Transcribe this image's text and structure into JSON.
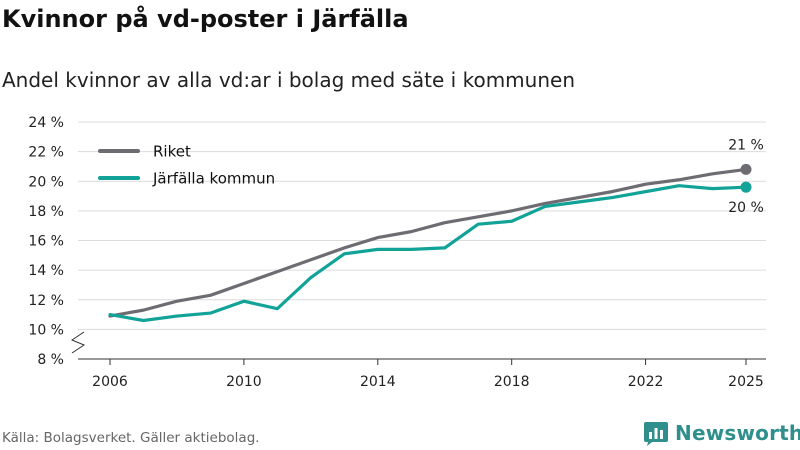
{
  "title": "Kvinnor på vd-poster i Järfälla",
  "subtitle": "Andel kvinnor av alla vd:ar i bolag med säte i kommunen",
  "source": "Källa: Bolagsverket. Gäller aktiebolag.",
  "brand": {
    "name": "Newsworthy",
    "icon": "bar-chart-logo-icon",
    "color": "#2e8f8c"
  },
  "chart_data": {
    "type": "line",
    "title": "Kvinnor på vd-poster i Järfälla",
    "xlabel": "",
    "ylabel": "",
    "x": [
      2006,
      2007,
      2008,
      2009,
      2010,
      2011,
      2012,
      2013,
      2014,
      2015,
      2016,
      2017,
      2018,
      2019,
      2020,
      2021,
      2022,
      2023,
      2024,
      2025
    ],
    "xticks": [
      "2006",
      "2010",
      "2014",
      "2018",
      "2022",
      "2025"
    ],
    "yticks": [
      "8 %",
      "10 %",
      "12 %",
      "14 %",
      "16 %",
      "18 %",
      "20 %",
      "22 %",
      "24 %"
    ],
    "ylim": [
      8,
      24
    ],
    "xlim": [
      2006,
      2025
    ],
    "grid": true,
    "axis_break": true,
    "legend_position": "top-left",
    "series": [
      {
        "name": "Riket",
        "color": "#6e6c72",
        "values": [
          10.9,
          11.3,
          11.9,
          12.3,
          13.1,
          13.9,
          14.7,
          15.5,
          16.2,
          16.6,
          17.2,
          17.6,
          18.0,
          18.5,
          18.9,
          19.3,
          19.8,
          20.1,
          20.5,
          20.8
        ],
        "end_label": "21 %"
      },
      {
        "name": "Järfälla kommun",
        "color": "#12a398",
        "values": [
          11.0,
          10.6,
          10.9,
          11.1,
          11.9,
          11.4,
          13.5,
          15.1,
          15.4,
          15.4,
          15.5,
          17.1,
          17.3,
          18.3,
          18.6,
          18.9,
          19.3,
          19.7,
          19.5,
          19.6
        ],
        "end_label": "20 %"
      }
    ]
  }
}
